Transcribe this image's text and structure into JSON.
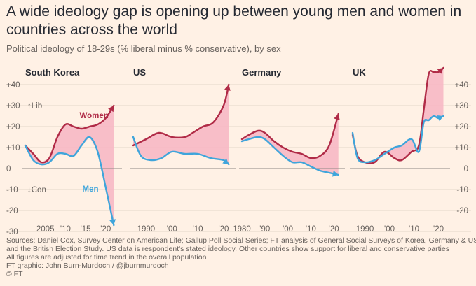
{
  "title": "A wide ideology gap is opening up between young men and women in countries across the world",
  "subtitle": "Political ideology of 18-29s (% liberal minus % conservative), by sex",
  "colors": {
    "women": "#B02B47",
    "men": "#3FA5DB",
    "gap_fill": "#F7B8C4",
    "zero": "#8E8883",
    "grid": "#E3D6C9"
  },
  "chart_data": [
    {
      "type": "line",
      "title": "South Korea",
      "xlim": [
        2000,
        2023
      ],
      "x_ticks": [
        2005,
        2010,
        2015,
        2020
      ],
      "x_tick_labels": [
        "2005",
        "'10",
        "'15",
        "'20"
      ],
      "y_ticks": [
        40,
        30,
        20,
        10,
        0,
        -10,
        -20,
        -30
      ],
      "y_tick_labels": [
        "+40",
        "+30",
        "+20",
        "+10",
        "0",
        "-10",
        "-20",
        "-30"
      ],
      "ylim": [
        -27,
        41
      ],
      "axis_annotations": [
        "↑Lib",
        "↓Con"
      ],
      "series": [
        {
          "name": "Women",
          "x": [
            2000,
            2002,
            2004,
            2006,
            2008,
            2010,
            2012,
            2014,
            2016,
            2018,
            2020,
            2022
          ],
          "values": [
            11,
            7,
            3,
            5,
            15,
            21,
            20,
            19,
            20,
            21,
            24,
            30
          ]
        },
        {
          "name": "Men",
          "x": [
            2000,
            2002,
            2004,
            2006,
            2008,
            2010,
            2012,
            2014,
            2016,
            2018,
            2020,
            2022
          ],
          "values": [
            11,
            4,
            2,
            3,
            7,
            7,
            6,
            11,
            15,
            8,
            -9,
            -27
          ]
        }
      ]
    },
    {
      "type": "line",
      "title": "US",
      "xlim": [
        1985,
        2023
      ],
      "x_ticks": [
        1990,
        2000,
        2010,
        2020
      ],
      "x_tick_labels": [
        "1990",
        "'00",
        "'10",
        "'20"
      ],
      "ylim": [
        -27,
        41
      ],
      "series": [
        {
          "name": "Women",
          "x": [
            1985,
            1990,
            1995,
            2000,
            2005,
            2008,
            2012,
            2016,
            2020,
            2022
          ],
          "values": [
            11,
            14,
            17,
            15,
            15,
            17,
            20,
            22,
            30,
            40
          ]
        },
        {
          "name": "Men",
          "x": [
            1985,
            1988,
            1992,
            1996,
            2000,
            2005,
            2010,
            2015,
            2020,
            2022
          ],
          "values": [
            15,
            6,
            4,
            5,
            8,
            7,
            7,
            5,
            4,
            2
          ]
        }
      ]
    },
    {
      "type": "line",
      "title": "Germany",
      "xlim": [
        1980,
        2023
      ],
      "x_ticks": [
        1980,
        1990,
        2000,
        2010,
        2020
      ],
      "x_tick_labels": [
        "1980",
        "'90",
        "'00",
        "'10",
        "'20"
      ],
      "ylim": [
        -27,
        41
      ],
      "series": [
        {
          "name": "Women",
          "x": [
            1980,
            1983,
            1987,
            1990,
            1994,
            1998,
            2002,
            2006,
            2010,
            2014,
            2018,
            2022
          ],
          "values": [
            14,
            16,
            18,
            17,
            13,
            10,
            8,
            7,
            5,
            6,
            11,
            26
          ]
        },
        {
          "name": "Men",
          "x": [
            1980,
            1983,
            1987,
            1990,
            1994,
            1998,
            2002,
            2006,
            2010,
            2014,
            2018,
            2022
          ],
          "values": [
            13,
            14,
            15,
            14,
            10,
            6,
            3,
            3,
            1,
            -1,
            -2,
            -3
          ]
        }
      ]
    },
    {
      "type": "line",
      "title": "UK",
      "xlim": [
        1985,
        2023
      ],
      "x_ticks": [
        1990,
        2000,
        2010,
        2020
      ],
      "x_tick_labels": [
        "1990",
        "'00",
        "'10",
        "'20"
      ],
      "y_ticks": [
        40,
        30,
        20,
        10,
        0,
        -10,
        -20
      ],
      "y_tick_labels": [
        "+40",
        "+30",
        "+20",
        "+10",
        "0",
        "-10",
        "-20"
      ],
      "ylim": [
        -27,
        41
      ],
      "series": [
        {
          "name": "Women",
          "x": [
            1985,
            1987,
            1990,
            1994,
            1998,
            2002,
            2005,
            2009,
            2012,
            2014,
            2016,
            2018,
            2020,
            2022
          ],
          "values": [
            16,
            6,
            3,
            3,
            8,
            5,
            4,
            8,
            11,
            28,
            45,
            46,
            46,
            48
          ]
        },
        {
          "name": "Men",
          "x": [
            1985,
            1987,
            1990,
            1994,
            1998,
            2002,
            2005,
            2009,
            2012,
            2014,
            2016,
            2018,
            2020,
            2022
          ],
          "values": [
            17,
            5,
            3,
            4,
            7,
            10,
            11,
            14,
            8,
            22,
            23,
            25,
            24,
            25
          ]
        }
      ]
    }
  ],
  "notes": [
    "Sources: Daniel Cox, Survey Center on American Life; Gallup Poll Social Series; FT analysis of General Social Surveys of Korea, Germany & US",
    "and the British Election Study. US data is respondent's stated ideology. Other countries show support for liberal and conservative parties",
    "All figures are adjusted for time trend in the overall population",
    "FT graphic: John Burn-Murdoch / @jburnmurdoch",
    "© FT"
  ]
}
